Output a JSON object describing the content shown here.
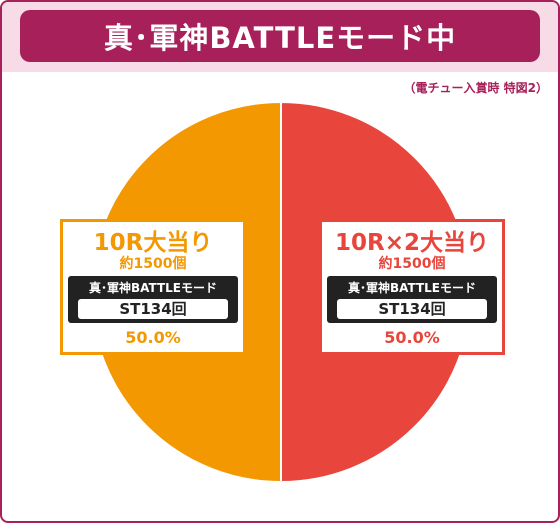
{
  "header": {
    "title": "真･軍神BATTLEモード中"
  },
  "note": "（電チュー入賞時 特図2）",
  "colors": {
    "brand": "#a8205a",
    "left_slice": "#f39800",
    "right_slice": "#e8453c",
    "title_band": "#f7dbe7"
  },
  "chart_data": {
    "type": "pie",
    "values": [
      50.0,
      50.0
    ],
    "slices": [
      {
        "head": "10R大当り",
        "balls": "約1500個",
        "mode": "真･軍神BATTLEモード",
        "st": "ST134回",
        "percent": "50.0%",
        "value": 50.0,
        "color": "#f39800"
      },
      {
        "head": "10R×2大当り",
        "balls": "約1500個",
        "mode": "真･軍神BATTLEモード",
        "st": "ST134回",
        "percent": "50.0%",
        "value": 50.0,
        "color": "#e8453c"
      }
    ],
    "legend": "none"
  }
}
